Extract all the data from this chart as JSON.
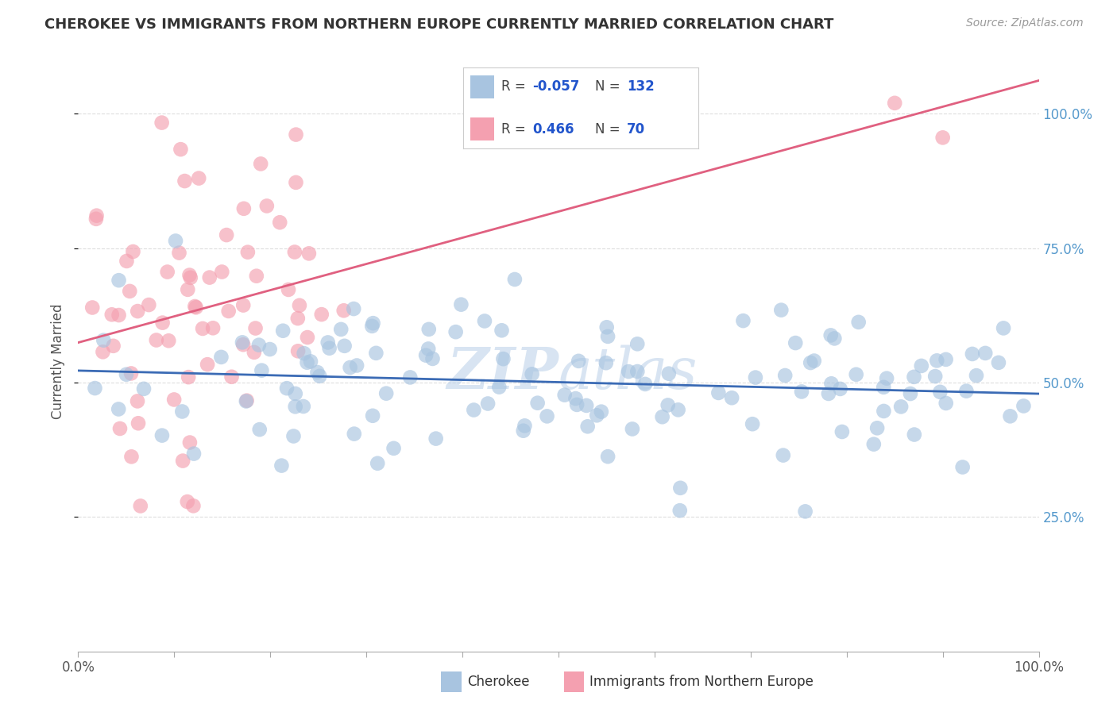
{
  "title": "CHEROKEE VS IMMIGRANTS FROM NORTHERN EUROPE CURRENTLY MARRIED CORRELATION CHART",
  "source": "Source: ZipAtlas.com",
  "ylabel": "Currently Married",
  "cherokee_R": -0.057,
  "cherokee_N": 132,
  "northern_europe_R": 0.466,
  "northern_europe_N": 70,
  "cherokee_color": "#A8C4E0",
  "northern_europe_color": "#F4A0B0",
  "trendline_cherokee_color": "#3B6BB5",
  "trendline_northern_europe_color": "#E06080",
  "legend_label_cherokee": "Cherokee",
  "legend_label_northern_europe": "Immigrants from Northern Europe",
  "watermark": "ZIPatlas",
  "background_color": "#ffffff",
  "grid_color": "#dddddd",
  "title_color": "#333333",
  "source_color": "#999999",
  "ylabel_color": "#555555",
  "right_tick_color": "#5599cc",
  "bottom_tick_color": "#555555",
  "legend_r_color": "#2255cc",
  "legend_n_color": "#2255cc"
}
